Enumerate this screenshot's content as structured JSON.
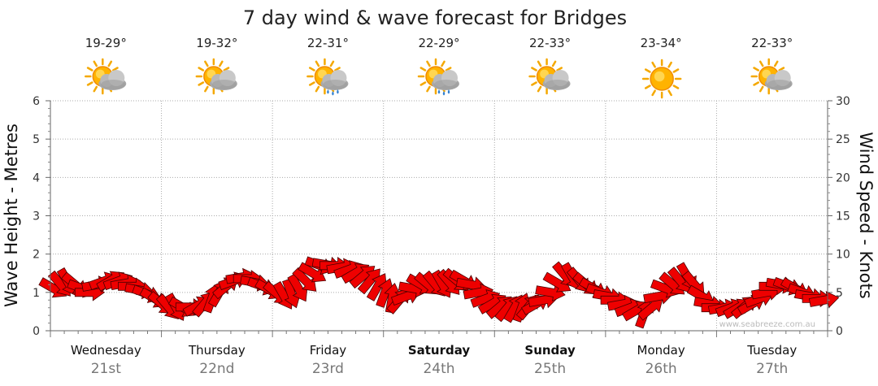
{
  "chart_data": {
    "type": "line",
    "title": "7 day wind & wave forecast for Bridges",
    "ylabel_left": "Wave Height - Metres",
    "ylabel_right": "Wind Speed - Knots",
    "ylim_left": [
      0,
      6
    ],
    "ylim_right": [
      0,
      30
    ],
    "yticks_left": [
      "0",
      "1",
      "2",
      "3",
      "4",
      "5",
      "6"
    ],
    "yticks_right": [
      "0",
      "5",
      "10",
      "15",
      "20",
      "25",
      "30"
    ],
    "grid": "dotted",
    "watermark": "www.seabreeze.com.au",
    "days": [
      {
        "name": "Wednesday",
        "date": "21st",
        "temp": "19-29°",
        "icon": "sun-cloud-icon",
        "bold": false
      },
      {
        "name": "Thursday",
        "date": "22nd",
        "temp": "19-32°",
        "icon": "sun-cloud-icon",
        "bold": false
      },
      {
        "name": "Friday",
        "date": "23rd",
        "temp": "22-31°",
        "icon": "sun-cloud-rain-icon",
        "bold": false
      },
      {
        "name": "Saturday",
        "date": "24th",
        "temp": "22-29°",
        "icon": "sun-cloud-rain-icon",
        "bold": true
      },
      {
        "name": "Sunday",
        "date": "25th",
        "temp": "22-33°",
        "icon": "sun-cloud-icon",
        "bold": true
      },
      {
        "name": "Monday",
        "date": "26th",
        "temp": "23-34°",
        "icon": "sun-icon",
        "bold": false
      },
      {
        "name": "Tuesday",
        "date": "27th",
        "temp": "22-33°",
        "icon": "sun-cloud-icon",
        "bold": false
      }
    ],
    "wind_knots": [
      5.5,
      6.0,
      6.3,
      6.0,
      5.5,
      5.0,
      6.0,
      6.5,
      6.6,
      6.5,
      6.2,
      5.8,
      5.3,
      4.8,
      4.2,
      3.5,
      3.0,
      3.0,
      3.0,
      3.1,
      3.3,
      3.6,
      4.3,
      5.0,
      5.8,
      6.5,
      7.0,
      6.8,
      6.3,
      5.8,
      5.3,
      4.8,
      4.5,
      4.8,
      5.5,
      6.5,
      7.5,
      8.5,
      8.6,
      8.5,
      8.3,
      8.0,
      7.6,
      7.2,
      6.6,
      5.8,
      5.0,
      4.3,
      4.0,
      4.5,
      5.5,
      6.0,
      6.0,
      6.0,
      6.0,
      6.2,
      6.5,
      6.5,
      6.0,
      5.0,
      4.2,
      3.6,
      3.2,
      3.0,
      3.0,
      3.1,
      3.2,
      3.5,
      4.0,
      5.0,
      6.2,
      7.2,
      7.0,
      6.5,
      6.0,
      5.5,
      5.0,
      4.5,
      4.0,
      3.5,
      3.0,
      2.7,
      2.3,
      3.0,
      4.5,
      5.5,
      6.0,
      6.5,
      7.0,
      6.0,
      4.5,
      3.5,
      3.0,
      3.0,
      3.0,
      3.0,
      3.2,
      3.5,
      4.2,
      5.0,
      5.8,
      6.0,
      5.8,
      5.5,
      5.0,
      4.5,
      4.2,
      4.0
    ],
    "wind_direction_deg": [
      300,
      320,
      330,
      310,
      290,
      270,
      260,
      250,
      240,
      250,
      260,
      270,
      280,
      290,
      300,
      310,
      320,
      330,
      300,
      270,
      240,
      220,
      200,
      210,
      230,
      250,
      260,
      270,
      280,
      290,
      300,
      310,
      330,
      340,
      330,
      315,
      300,
      290,
      280,
      270,
      260,
      250,
      240,
      230,
      220,
      210,
      200,
      190,
      220,
      250,
      280,
      300,
      310,
      320,
      330,
      320,
      310,
      300,
      280,
      260,
      250,
      240,
      230,
      220,
      210,
      200,
      220,
      240,
      260,
      280,
      300,
      320,
      330,
      320,
      310,
      300,
      290,
      280,
      270,
      260,
      250,
      240,
      200,
      230,
      260,
      290,
      310,
      320,
      330,
      320,
      300,
      280,
      270,
      260,
      250,
      240,
      230,
      240,
      250,
      260,
      270,
      280,
      290,
      300,
      290,
      280,
      270,
      260
    ]
  }
}
